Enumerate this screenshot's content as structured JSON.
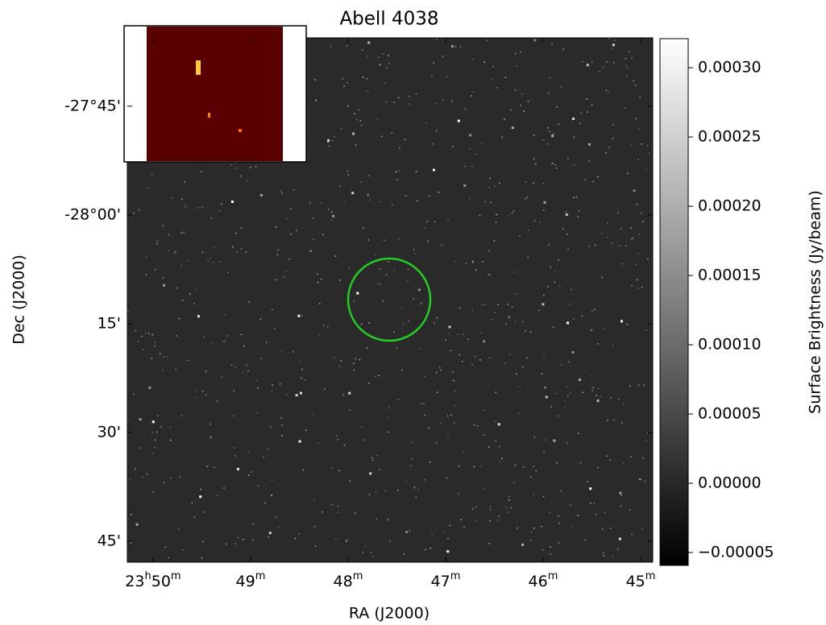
{
  "chart_data": {
    "type": "image",
    "title": "Abell 4038",
    "xlabel": "RA (J2000)",
    "ylabel": "Dec (J2000)",
    "xlim": [
      357.566,
      356.219
    ],
    "ylim": [
      -28.798,
      -27.593
    ],
    "xticks": [
      {
        "value": 357.5,
        "label": "23h50m"
      },
      {
        "value": 357.25,
        "label": "49m"
      },
      {
        "value": 357.0,
        "label": "48m"
      },
      {
        "value": 356.75,
        "label": "47m"
      },
      {
        "value": 356.5,
        "label": "46m"
      },
      {
        "value": 356.25,
        "label": "45m"
      }
    ],
    "yticks": [
      {
        "value": -27.75,
        "label": "-27°45'"
      },
      {
        "value": -28.0,
        "label": "-28°00'"
      },
      {
        "value": -28.25,
        "label": "15'"
      },
      {
        "value": -28.5,
        "label": "30'"
      },
      {
        "value": -28.75,
        "label": "45'"
      }
    ],
    "colorbar": {
      "label": "Surface Brightness (Jy/beam)",
      "clim": [
        -5.93e-05,
        0.000321
      ],
      "ticks": [
        {
          "value": -5e-05,
          "label": "−0.00005"
        },
        {
          "value": 0,
          "label": "0.00000"
        },
        {
          "value": 5e-05,
          "label": "0.00005"
        },
        {
          "value": 0.0001,
          "label": "0.00010"
        },
        {
          "value": 0.00015,
          "label": "0.00015"
        },
        {
          "value": 0.0002,
          "label": "0.00020"
        },
        {
          "value": 0.00025,
          "label": "0.00025"
        },
        {
          "value": 0.0003,
          "label": "0.00030"
        }
      ]
    }
  }
}
